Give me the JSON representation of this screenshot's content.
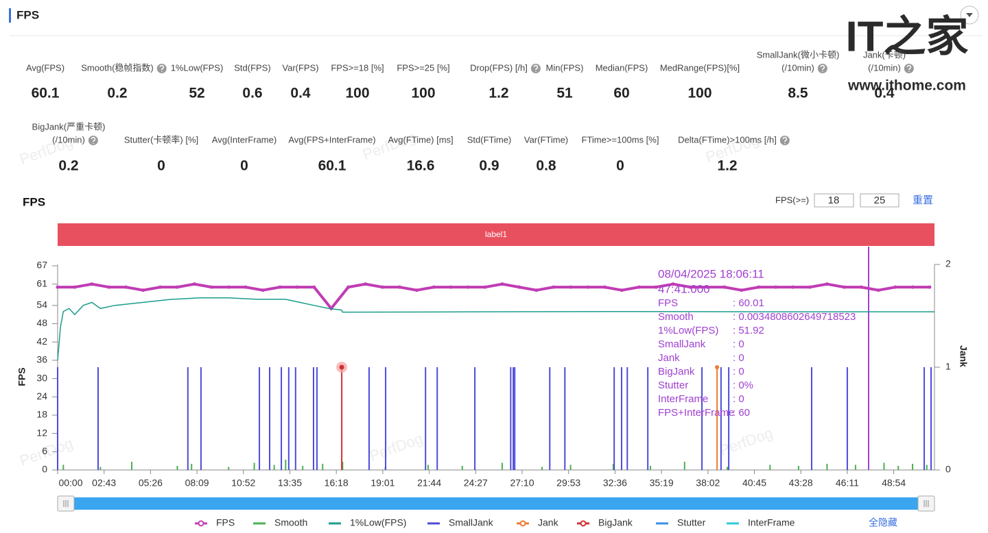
{
  "header": {
    "title": "FPS"
  },
  "branding": {
    "logo": "IT之家",
    "url": "www.ithome.com",
    "watermark": "PerfDog"
  },
  "metrics": [
    [
      {
        "label": [
          "Avg(FPS)"
        ],
        "value": 60.1
      },
      {
        "label": [
          "Smooth(稳帧指数)"
        ],
        "value": 0.2
      },
      {
        "label": [
          "1%Low(FPS)"
        ],
        "value": 52
      },
      {
        "label": [
          "Std(FPS)"
        ],
        "value": 0.6
      },
      {
        "label": [
          "Var(FPS)"
        ],
        "value": 0.4
      },
      {
        "label": [
          "FPS>=18 [%]"
        ],
        "value": 100
      },
      {
        "label": [
          "FPS>=25 [%]"
        ],
        "value": 100
      },
      {
        "label": [
          "Drop(FPS) [/h]"
        ],
        "value": 1.2
      },
      {
        "label": [
          "Min(FPS)"
        ],
        "value": 51
      },
      {
        "label": [
          "Median(FPS)"
        ],
        "value": 60
      },
      {
        "label": [
          "MedRange(FPS)[%]"
        ],
        "value": 100
      },
      {
        "label": [
          "SmallJank(微小卡顿)",
          "(/10min)"
        ],
        "value": 8.5
      },
      {
        "label": [
          "Jank(卡顿)",
          "(/10min)"
        ],
        "value": 0.4
      }
    ],
    [
      {
        "label": [
          "BigJank(严重卡顿)",
          "(/10min)"
        ],
        "value": 0.2
      },
      {
        "label": [
          "Stutter(卡顿率) [%]"
        ],
        "value": 0
      },
      {
        "label": [
          "Avg(InterFrame)"
        ],
        "value": 0
      },
      {
        "label": [
          "Avg(FPS+InterFrame)"
        ],
        "value": 60.1
      },
      {
        "label": [
          "Avg(FTime) [ms]"
        ],
        "value": 16.6
      },
      {
        "label": [
          "Std(FTime)"
        ],
        "value": 0.9
      },
      {
        "label": [
          "Var(FTime)"
        ],
        "value": 0.8
      },
      {
        "label": [
          "FTime>=100ms [%]"
        ],
        "value": 0
      },
      {
        "label": [
          "Delta(FTime)>100ms [/h]"
        ],
        "value": 1.2
      }
    ]
  ],
  "chart": {
    "type": "line",
    "title": "FPS",
    "threshold_label": "FPS(>=)",
    "thresholds": [
      18,
      25
    ],
    "reset": "重置",
    "band_label": "label1",
    "y_label": "FPS",
    "y2_label": "Jank",
    "xlim": [
      0,
      3077
    ],
    "ylim": [
      0,
      67
    ],
    "y2lim": [
      0,
      2
    ],
    "yticks": [
      0,
      6,
      12,
      18,
      24,
      30,
      36,
      42,
      48,
      54,
      61,
      67
    ],
    "y2ticks": [
      0,
      1,
      2
    ],
    "xticks": [
      {
        "value": 0,
        "label": "00:00"
      },
      {
        "value": 163,
        "label": "02:43"
      },
      {
        "value": 326,
        "label": "05:26"
      },
      {
        "value": 489,
        "label": "08:09"
      },
      {
        "value": 652,
        "label": "10:52"
      },
      {
        "value": 815,
        "label": "13:35"
      },
      {
        "value": 978,
        "label": "16:18"
      },
      {
        "value": 1141,
        "label": "19:01"
      },
      {
        "value": 1304,
        "label": "21:44"
      },
      {
        "value": 1467,
        "label": "24:27"
      },
      {
        "value": 1630,
        "label": "27:10"
      },
      {
        "value": 1793,
        "label": "29:53"
      },
      {
        "value": 1956,
        "label": "32:36"
      },
      {
        "value": 2119,
        "label": "35:19"
      },
      {
        "value": 2282,
        "label": "38:02"
      },
      {
        "value": 2445,
        "label": "40:45"
      },
      {
        "value": 2608,
        "label": "43:28"
      },
      {
        "value": 2771,
        "label": "46:11"
      },
      {
        "value": 2934,
        "label": "48:54"
      }
    ],
    "series": [
      {
        "name": "FPS",
        "color": "#c03cb4",
        "x": [
          0,
          60,
          120,
          180,
          240,
          300,
          360,
          420,
          480,
          540,
          600,
          660,
          720,
          780,
          840,
          900,
          960,
          1020,
          1080,
          1140,
          1200,
          1260,
          1320,
          1380,
          1440,
          1500,
          1560,
          1620,
          1680,
          1740,
          1800,
          1860,
          1920,
          1980,
          2040,
          2100,
          2160,
          2220,
          2280,
          2340,
          2400,
          2460,
          2520,
          2580,
          2640,
          2700,
          2760,
          2820,
          2880,
          2940,
          3000,
          3060
        ],
        "values": [
          60,
          60,
          61,
          60,
          60,
          59,
          60,
          60,
          61,
          60,
          60,
          60,
          59,
          60,
          60,
          60,
          53,
          60,
          61,
          60,
          60,
          59,
          60,
          60,
          60,
          60,
          61,
          60,
          59,
          60,
          60,
          60,
          60,
          59,
          60,
          60,
          61,
          60,
          60,
          60,
          59,
          60,
          60,
          60,
          60,
          61,
          60,
          60,
          59,
          60,
          60,
          60
        ]
      },
      {
        "name": "Smooth",
        "color": "#4caf50",
        "axis": "y2",
        "x": [
          20,
          150,
          260,
          420,
          470,
          600,
          690,
          760,
          800,
          860,
          930,
          1000,
          1150,
          1300,
          1420,
          1560,
          1700,
          1800,
          1950,
          2080,
          2200,
          2350,
          2500,
          2600,
          2700,
          2800,
          2900,
          2950,
          3000,
          3050
        ],
        "values": [
          0.05,
          0.03,
          0.08,
          0.04,
          0.06,
          0.03,
          0.07,
          0.05,
          0.1,
          0.04,
          0.06,
          0.08,
          0.03,
          0.05,
          0.04,
          0.07,
          0.03,
          0.05,
          0.06,
          0.04,
          0.08,
          0.03,
          0.05,
          0.04,
          0.06,
          0.05,
          0.07,
          0.04,
          0.06,
          0.05
        ]
      },
      {
        "name": "1%Low(FPS)",
        "color": "#1a9c8c",
        "x": [
          0,
          10,
          20,
          40,
          60,
          90,
          120,
          150,
          200,
          300,
          400,
          500,
          600,
          700,
          800,
          850,
          900,
          950,
          996,
          1000,
          1500,
          2000,
          2500,
          3077
        ],
        "values": [
          36,
          47,
          52,
          53,
          51,
          54,
          55,
          53,
          54,
          55,
          56,
          56.5,
          56.5,
          56,
          56,
          55,
          54,
          53,
          52.5,
          51.8,
          51.9,
          52,
          51.9,
          51.9
        ]
      },
      {
        "name": "SmallJank",
        "color": "#4b4bdc",
        "axis": "y2",
        "x": [
          0,
          142,
          457,
          503,
          708,
          744,
          785,
          811,
          835,
          898,
          910,
          1093,
          1151,
          1291,
          1332,
          1464,
          1590,
          1599,
          1604,
          1727,
          1780,
          1953,
          1979,
          1999,
          2071,
          2261,
          2328,
          2355,
          2646,
          2771,
          3041,
          3065
        ],
        "values": [
          1,
          1,
          1,
          1,
          1,
          1,
          1,
          1,
          1,
          1,
          1,
          1,
          1,
          1,
          1,
          1,
          1,
          1,
          1,
          1,
          1,
          1,
          1,
          1,
          1,
          1,
          1,
          1,
          1,
          1,
          1,
          1
        ]
      },
      {
        "name": "Jank",
        "color": "#f07a30",
        "axis": "y2",
        "x": [
          2314
        ],
        "values": [
          1
        ]
      },
      {
        "name": "BigJank",
        "color": "#d03030",
        "axis": "y2",
        "x": [
          997
        ],
        "values": [
          1
        ]
      },
      {
        "name": "Stutter",
        "color": "#3c8ce6",
        "axis": "y2",
        "x": [],
        "values": []
      },
      {
        "name": "InterFrame",
        "color": "#2ec8d8",
        "axis": "y2",
        "x": [],
        "values": []
      }
    ],
    "hide_all": "全隐藏",
    "tooltip": {
      "date": "08/04/2025 18:06:11",
      "time": "47:41.000",
      "rows": [
        {
          "label": "FPS",
          "value": ": 60.01"
        },
        {
          "label": "Smooth",
          "value": ": 0.0034808602649718523"
        },
        {
          "label": "1%Low(FPS)",
          "value": ": 51.92"
        },
        {
          "label": "SmallJank",
          "value": ": 0"
        },
        {
          "label": "Jank",
          "value": ": 0"
        },
        {
          "label": "BigJank",
          "value": ": 0"
        },
        {
          "label": "Stutter",
          "value": ": 0%"
        },
        {
          "label": "InterFrame",
          "value": ": 0"
        },
        {
          "label": "FPS+InterFrame",
          "value": ": 60"
        }
      ]
    }
  }
}
